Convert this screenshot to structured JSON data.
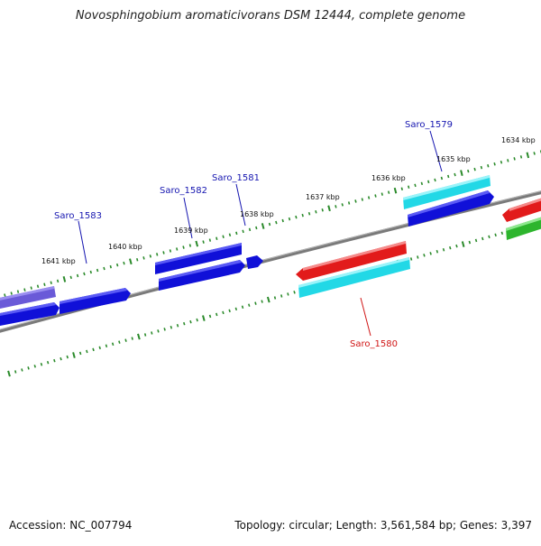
{
  "title": "Novosphingobium aromaticivorans DSM 12444, complete genome",
  "footer": {
    "accession": "Accession: NC_007794",
    "summary": "Topology: circular; Length: 3,561,584 bp; Genes: 3,397"
  },
  "colors": {
    "forward_gene": "#1010d8",
    "forward_gene_light": "#6a5ad8",
    "reverse_gene": "#e21b1b",
    "cyan_gene": "#22d8e6",
    "green_gene": "#2db52d",
    "backbone": "#7a7a7a",
    "tick": "#2a8a2a",
    "label_blue": "#1515b0",
    "label_red": "#d01515"
  },
  "kbp_labels": [
    "1634 kbp",
    "1635 kbp",
    "1636 kbp",
    "1637 kbp",
    "1638 kbp",
    "1639 kbp",
    "1640 kbp",
    "1641 kbp"
  ],
  "gene_labels": [
    {
      "id": "Saro_1579",
      "strand": "forward"
    },
    {
      "id": "Saro_1580",
      "strand": "reverse"
    },
    {
      "id": "Saro_1581",
      "strand": "forward"
    },
    {
      "id": "Saro_1582",
      "strand": "forward"
    },
    {
      "id": "Saro_1583",
      "strand": "forward"
    }
  ]
}
